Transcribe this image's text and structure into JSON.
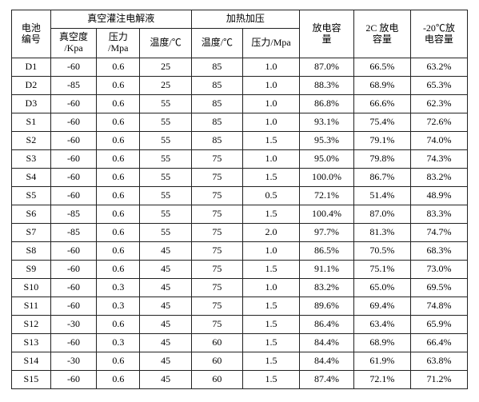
{
  "headers": {
    "battery_id": "电池\n编号",
    "group_vacuum": "真空灌注电解液",
    "group_heat": "加热加压",
    "discharge_cap": "放电容\n量",
    "rate2c_cap": "2C 放电\n容量",
    "minus20_cap": "-20℃放\n电容量",
    "vacuum": "真空度\n/Kpa",
    "pressure_mpa": "压力\n/Mpa",
    "temp_c_1": "温度/℃",
    "temp_c_2": "温度/℃",
    "pressure_mpa2": "压力/Mpa"
  },
  "column_align": [
    "center",
    "center",
    "center",
    "center",
    "center",
    "center",
    "center",
    "center",
    "center"
  ],
  "rows": [
    [
      "D1",
      "-60",
      "0.6",
      "25",
      "85",
      "1.0",
      "87.0%",
      "66.5%",
      "63.2%"
    ],
    [
      "D2",
      "-85",
      "0.6",
      "25",
      "85",
      "1.0",
      "88.3%",
      "68.9%",
      "65.3%"
    ],
    [
      "D3",
      "-60",
      "0.6",
      "55",
      "85",
      "1.0",
      "86.8%",
      "66.6%",
      "62.3%"
    ],
    [
      "S1",
      "-60",
      "0.6",
      "55",
      "85",
      "1.0",
      "93.1%",
      "75.4%",
      "72.6%"
    ],
    [
      "S2",
      "-60",
      "0.6",
      "55",
      "85",
      "1.5",
      "95.3%",
      "79.1%",
      "74.0%"
    ],
    [
      "S3",
      "-60",
      "0.6",
      "55",
      "75",
      "1.0",
      "95.0%",
      "79.8%",
      "74.3%"
    ],
    [
      "S4",
      "-60",
      "0.6",
      "55",
      "75",
      "1.5",
      "100.0%",
      "86.7%",
      "83.2%"
    ],
    [
      "S5",
      "-60",
      "0.6",
      "55",
      "75",
      "0.5",
      "72.1%",
      "51.4%",
      "48.9%"
    ],
    [
      "S6",
      "-85",
      "0.6",
      "55",
      "75",
      "1.5",
      "100.4%",
      "87.0%",
      "83.3%"
    ],
    [
      "S7",
      "-85",
      "0.6",
      "55",
      "75",
      "2.0",
      "97.7%",
      "81.3%",
      "74.7%"
    ],
    [
      "S8",
      "-60",
      "0.6",
      "45",
      "75",
      "1.0",
      "86.5%",
      "70.5%",
      "68.3%"
    ],
    [
      "S9",
      "-60",
      "0.6",
      "45",
      "75",
      "1.5",
      "91.1%",
      "75.1%",
      "73.0%"
    ],
    [
      "S10",
      "-60",
      "0.3",
      "45",
      "75",
      "1.0",
      "83.2%",
      "65.0%",
      "69.5%"
    ],
    [
      "S11",
      "-60",
      "0.3",
      "45",
      "75",
      "1.5",
      "89.6%",
      "69.4%",
      "74.8%"
    ],
    [
      "S12",
      "-30",
      "0.6",
      "45",
      "75",
      "1.5",
      "86.4%",
      "63.4%",
      "65.9%"
    ],
    [
      "S13",
      "-60",
      "0.3",
      "45",
      "60",
      "1.5",
      "84.4%",
      "68.9%",
      "66.4%"
    ],
    [
      "S14",
      "-30",
      "0.6",
      "45",
      "60",
      "1.5",
      "84.4%",
      "61.9%",
      "63.8%"
    ],
    [
      "S15",
      "-60",
      "0.6",
      "45",
      "60",
      "1.5",
      "87.4%",
      "72.1%",
      "71.2%"
    ]
  ]
}
